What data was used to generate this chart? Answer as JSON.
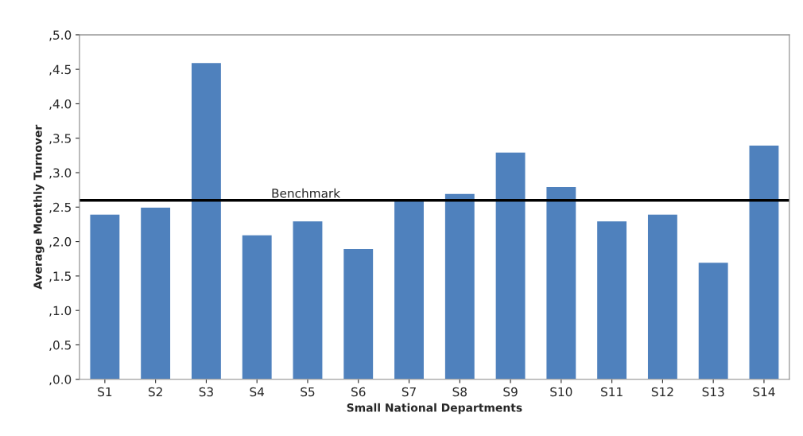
{
  "chart_data": {
    "type": "bar",
    "xlabel": "Small National Departments",
    "ylabel": "Average Monthly Turnover",
    "categories": [
      "S1",
      "S2",
      "S3",
      "S4",
      "S5",
      "S6",
      "S7",
      "S8",
      "S9",
      "S10",
      "S11",
      "S12",
      "S13",
      "S14"
    ],
    "values": [
      2.4,
      2.5,
      4.6,
      2.1,
      2.3,
      1.9,
      2.6,
      2.7,
      3.3,
      2.8,
      2.3,
      2.4,
      1.7,
      3.4
    ],
    "color": "#4f81bd",
    "ylim": [
      0,
      5
    ],
    "yticks": [
      {
        "value": 0,
        "label": ",0.0"
      },
      {
        "value": 0.5,
        "label": ",0.5"
      },
      {
        "value": 1,
        "label": ",1.0"
      },
      {
        "value": 1.5,
        "label": ",1.5"
      },
      {
        "value": 2,
        "label": ",2.0"
      },
      {
        "value": 2.5,
        "label": ",2.5"
      },
      {
        "value": 3,
        "label": ",3.0"
      },
      {
        "value": 3.5,
        "label": ",3.5"
      },
      {
        "value": 4,
        "label": ",4.0"
      },
      {
        "value": 4.5,
        "label": ",4.5"
      },
      {
        "value": 5,
        "label": ",5.0"
      }
    ],
    "ref_lines": [
      {
        "axis": "y",
        "value": 2.6,
        "label": "Benchmark",
        "color": "#000000"
      }
    ],
    "grid": false,
    "legend": false
  }
}
